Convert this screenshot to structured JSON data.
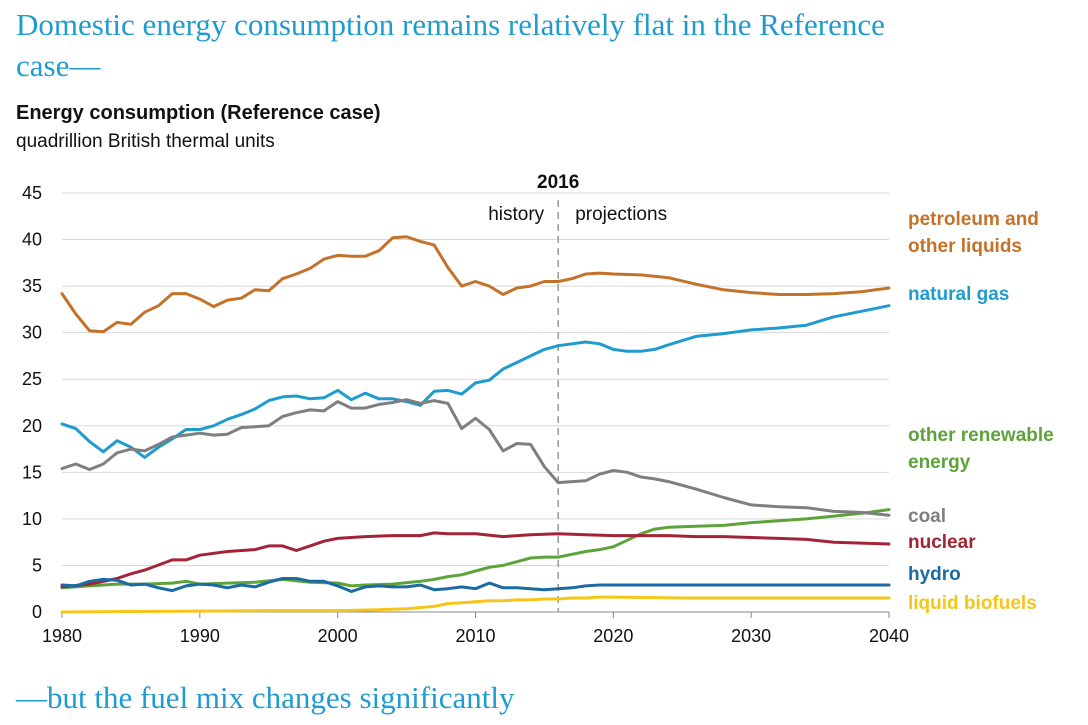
{
  "headline": "Domestic energy consumption remains relatively flat in the Reference case—",
  "footer": "—but the fuel mix changes significantly",
  "chart_data": {
    "type": "line",
    "title": "Energy consumption (Reference case)",
    "ylabel": "quadrillion British thermal units",
    "xlabel": "",
    "xlim": [
      1980,
      2040
    ],
    "ylim": [
      0,
      45
    ],
    "xticks": [
      1980,
      1990,
      2000,
      2010,
      2020,
      2030,
      2040
    ],
    "yticks": [
      0,
      5,
      10,
      15,
      20,
      25,
      30,
      35,
      40,
      45
    ],
    "grid": "horizontal",
    "divider": {
      "year": 2016,
      "label": "2016",
      "left_label": "history",
      "right_label": "projections"
    },
    "series": [
      {
        "name": "petroleum and other liquids",
        "color": "#c4722a",
        "x": [
          1980,
          1981,
          1982,
          1983,
          1984,
          1985,
          1986,
          1987,
          1988,
          1989,
          1990,
          1991,
          1992,
          1993,
          1994,
          1995,
          1996,
          1997,
          1998,
          1999,
          2000,
          2001,
          2002,
          2003,
          2004,
          2005,
          2006,
          2007,
          2008,
          2009,
          2010,
          2011,
          2012,
          2013,
          2014,
          2015,
          2016,
          2017,
          2018,
          2019,
          2020,
          2022,
          2024,
          2026,
          2028,
          2030,
          2032,
          2034,
          2036,
          2038,
          2040
        ],
        "values": [
          34.2,
          32.0,
          30.2,
          30.1,
          31.1,
          30.9,
          32.2,
          32.9,
          34.2,
          34.2,
          33.6,
          32.8,
          33.5,
          33.7,
          34.6,
          34.5,
          35.8,
          36.3,
          36.9,
          37.9,
          38.3,
          38.2,
          38.2,
          38.8,
          40.2,
          40.3,
          39.8,
          39.4,
          37.0,
          35.0,
          35.5,
          35.0,
          34.1,
          34.8,
          35.0,
          35.5,
          35.5,
          35.8,
          36.3,
          36.4,
          36.3,
          36.2,
          35.9,
          35.2,
          34.6,
          34.3,
          34.1,
          34.1,
          34.2,
          34.4,
          34.8
        ]
      },
      {
        "name": "natural gas",
        "color": "#1f9bd0",
        "x": [
          1980,
          1981,
          1982,
          1983,
          1984,
          1985,
          1986,
          1987,
          1988,
          1989,
          1990,
          1991,
          1992,
          1993,
          1994,
          1995,
          1996,
          1997,
          1998,
          1999,
          2000,
          2001,
          2002,
          2003,
          2004,
          2005,
          2006,
          2007,
          2008,
          2009,
          2010,
          2011,
          2012,
          2013,
          2014,
          2015,
          2016,
          2017,
          2018,
          2019,
          2020,
          2021,
          2022,
          2023,
          2024,
          2026,
          2028,
          2030,
          2032,
          2034,
          2036,
          2038,
          2040
        ],
        "values": [
          20.2,
          19.7,
          18.3,
          17.2,
          18.4,
          17.7,
          16.6,
          17.7,
          18.6,
          19.6,
          19.6,
          20.0,
          20.7,
          21.2,
          21.8,
          22.7,
          23.1,
          23.2,
          22.9,
          23.0,
          23.8,
          22.8,
          23.5,
          22.9,
          22.9,
          22.6,
          22.2,
          23.7,
          23.8,
          23.4,
          24.6,
          24.9,
          26.1,
          26.8,
          27.5,
          28.2,
          28.6,
          28.8,
          29.0,
          28.8,
          28.2,
          28.0,
          28.0,
          28.2,
          28.7,
          29.6,
          29.9,
          30.3,
          30.5,
          30.8,
          31.7,
          32.3,
          32.9
        ]
      },
      {
        "name": "other renewable energy",
        "color": "#5da33a",
        "x": [
          1980,
          1982,
          1984,
          1986,
          1988,
          1989,
          1990,
          1992,
          1994,
          1996,
          1998,
          2000,
          2001,
          2002,
          2004,
          2006,
          2007,
          2008,
          2009,
          2010,
          2011,
          2012,
          2013,
          2014,
          2015,
          2016,
          2017,
          2018,
          2019,
          2020,
          2021,
          2022,
          2023,
          2024,
          2026,
          2028,
          2030,
          2032,
          2034,
          2036,
          2038,
          2040
        ],
        "values": [
          2.6,
          2.8,
          3.0,
          3.0,
          3.1,
          3.3,
          3.0,
          3.1,
          3.2,
          3.5,
          3.2,
          3.1,
          2.8,
          2.9,
          3.0,
          3.3,
          3.5,
          3.8,
          4.0,
          4.4,
          4.8,
          5.0,
          5.4,
          5.8,
          5.9,
          5.9,
          6.2,
          6.5,
          6.7,
          7.0,
          7.7,
          8.4,
          8.9,
          9.1,
          9.2,
          9.3,
          9.6,
          9.8,
          10.0,
          10.3,
          10.6,
          11.0
        ]
      },
      {
        "name": "coal",
        "color": "#7f7f7f",
        "x": [
          1980,
          1981,
          1982,
          1983,
          1984,
          1985,
          1986,
          1987,
          1988,
          1989,
          1990,
          1991,
          1992,
          1993,
          1994,
          1995,
          1996,
          1997,
          1998,
          1999,
          2000,
          2001,
          2002,
          2003,
          2004,
          2005,
          2006,
          2007,
          2008,
          2009,
          2010,
          2011,
          2012,
          2013,
          2014,
          2015,
          2016,
          2017,
          2018,
          2019,
          2020,
          2021,
          2022,
          2023,
          2024,
          2026,
          2028,
          2030,
          2032,
          2034,
          2036,
          2038,
          2040
        ],
        "values": [
          15.4,
          15.9,
          15.3,
          15.9,
          17.1,
          17.5,
          17.3,
          18.0,
          18.8,
          19.0,
          19.2,
          19.0,
          19.1,
          19.8,
          19.9,
          20.0,
          21.0,
          21.4,
          21.7,
          21.6,
          22.6,
          21.9,
          21.9,
          22.3,
          22.5,
          22.8,
          22.4,
          22.7,
          22.4,
          19.7,
          20.8,
          19.6,
          17.3,
          18.1,
          18.0,
          15.6,
          13.9,
          14.0,
          14.1,
          14.8,
          15.2,
          15.0,
          14.5,
          14.3,
          14.0,
          13.2,
          12.3,
          11.5,
          11.3,
          11.2,
          10.8,
          10.7,
          10.4
        ]
      },
      {
        "name": "nuclear",
        "color": "#a32437",
        "x": [
          1980,
          1982,
          1984,
          1985,
          1986,
          1988,
          1989,
          1990,
          1992,
          1994,
          1995,
          1996,
          1997,
          1998,
          1999,
          2000,
          2002,
          2004,
          2006,
          2007,
          2008,
          2010,
          2012,
          2014,
          2016,
          2018,
          2020,
          2022,
          2024,
          2026,
          2028,
          2030,
          2032,
          2034,
          2036,
          2038,
          2040
        ],
        "values": [
          2.7,
          3.0,
          3.6,
          4.1,
          4.5,
          5.6,
          5.6,
          6.1,
          6.5,
          6.7,
          7.1,
          7.1,
          6.6,
          7.1,
          7.6,
          7.9,
          8.1,
          8.2,
          8.2,
          8.5,
          8.4,
          8.4,
          8.1,
          8.3,
          8.4,
          8.3,
          8.2,
          8.2,
          8.2,
          8.1,
          8.1,
          8.0,
          7.9,
          7.8,
          7.5,
          7.4,
          7.3
        ]
      },
      {
        "name": "hydro",
        "color": "#1c6aa3",
        "x": [
          1980,
          1981,
          1982,
          1983,
          1984,
          1985,
          1986,
          1987,
          1988,
          1989,
          1990,
          1991,
          1992,
          1993,
          1994,
          1995,
          1996,
          1997,
          1998,
          1999,
          2000,
          2001,
          2002,
          2003,
          2004,
          2005,
          2006,
          2007,
          2008,
          2009,
          2010,
          2011,
          2012,
          2013,
          2014,
          2015,
          2016,
          2017,
          2018,
          2019,
          2020,
          2022,
          2025,
          2030,
          2035,
          2040
        ],
        "values": [
          2.9,
          2.8,
          3.3,
          3.5,
          3.4,
          2.9,
          3.0,
          2.6,
          2.3,
          2.8,
          3.0,
          2.9,
          2.6,
          2.9,
          2.7,
          3.2,
          3.6,
          3.6,
          3.3,
          3.3,
          2.8,
          2.2,
          2.7,
          2.8,
          2.7,
          2.7,
          2.9,
          2.4,
          2.5,
          2.7,
          2.5,
          3.1,
          2.6,
          2.6,
          2.5,
          2.4,
          2.5,
          2.6,
          2.8,
          2.9,
          2.9,
          2.9,
          2.9,
          2.9,
          2.9,
          2.9
        ]
      },
      {
        "name": "liquid biofuels",
        "color": "#f5c518",
        "x": [
          1980,
          1985,
          1990,
          1995,
          2000,
          2003,
          2005,
          2007,
          2008,
          2009,
          2010,
          2011,
          2012,
          2013,
          2014,
          2015,
          2016,
          2017,
          2018,
          2019,
          2020,
          2025,
          2030,
          2035,
          2040
        ],
        "values": [
          0.0,
          0.05,
          0.1,
          0.15,
          0.15,
          0.25,
          0.35,
          0.6,
          0.9,
          1.0,
          1.1,
          1.2,
          1.2,
          1.3,
          1.3,
          1.4,
          1.4,
          1.5,
          1.5,
          1.6,
          1.6,
          1.5,
          1.5,
          1.5,
          1.5
        ]
      }
    ],
    "legend_labels": [
      {
        "series": "petroleum and other liquids",
        "lines": [
          "petroleum and",
          "other liquids"
        ]
      },
      {
        "series": "natural gas",
        "lines": [
          "natural gas"
        ]
      },
      {
        "series": "other renewable energy",
        "lines": [
          "other renewable",
          "energy"
        ]
      },
      {
        "series": "coal",
        "lines": [
          "coal"
        ]
      },
      {
        "series": "nuclear",
        "lines": [
          "nuclear"
        ]
      },
      {
        "series": "hydro",
        "lines": [
          "hydro"
        ]
      },
      {
        "series": "liquid biofuels",
        "lines": [
          "liquid biofuels"
        ]
      }
    ]
  }
}
